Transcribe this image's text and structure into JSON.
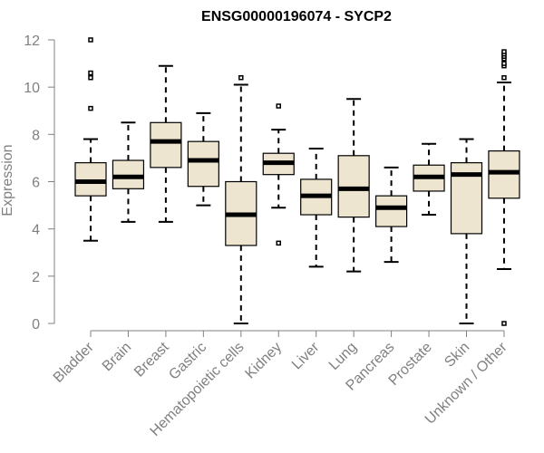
{
  "chart_data": {
    "type": "boxplot",
    "title": "ENSG00000196074 - SYCP2",
    "ylabel": "Expression",
    "xlabel": "",
    "ylim": [
      0,
      12
    ],
    "yticks": [
      0,
      2,
      4,
      6,
      8,
      10,
      12
    ],
    "categories": [
      "Bladder",
      "Brain",
      "Breast",
      "Gastric",
      "Hematopoietic cells",
      "Kidney",
      "Liver",
      "Lung",
      "Pancreas",
      "Prostate",
      "Skin",
      "Unknown / Other"
    ],
    "boxes": [
      {
        "category": "Bladder",
        "min": 3.5,
        "q1": 5.4,
        "median": 6.0,
        "q3": 6.8,
        "max": 7.8,
        "outliers": [
          9.1,
          10.4,
          10.6,
          12.0
        ]
      },
      {
        "category": "Brain",
        "min": 4.3,
        "q1": 5.7,
        "median": 6.2,
        "q3": 6.9,
        "max": 8.5,
        "outliers": []
      },
      {
        "category": "Breast",
        "min": 4.3,
        "q1": 6.6,
        "median": 7.7,
        "q3": 8.5,
        "max": 10.9,
        "outliers": []
      },
      {
        "category": "Gastric",
        "min": 5.0,
        "q1": 5.8,
        "median": 6.9,
        "q3": 7.7,
        "max": 8.9,
        "outliers": []
      },
      {
        "category": "Hematopoietic cells",
        "min": 0.0,
        "q1": 3.3,
        "median": 4.6,
        "q3": 6.0,
        "max": 10.1,
        "outliers": [
          10.4
        ]
      },
      {
        "category": "Kidney",
        "min": 4.9,
        "q1": 6.3,
        "median": 6.8,
        "q3": 7.2,
        "max": 8.2,
        "outliers": [
          3.4,
          9.2
        ]
      },
      {
        "category": "Liver",
        "min": 2.4,
        "q1": 4.6,
        "median": 5.4,
        "q3": 6.1,
        "max": 7.4,
        "outliers": []
      },
      {
        "category": "Lung",
        "min": 2.2,
        "q1": 4.5,
        "median": 5.7,
        "q3": 7.1,
        "max": 9.5,
        "outliers": []
      },
      {
        "category": "Pancreas",
        "min": 2.6,
        "q1": 4.1,
        "median": 4.9,
        "q3": 5.4,
        "max": 6.6,
        "outliers": []
      },
      {
        "category": "Prostate",
        "min": 4.6,
        "q1": 5.6,
        "median": 6.2,
        "q3": 6.7,
        "max": 7.6,
        "outliers": []
      },
      {
        "category": "Skin",
        "min": 0.0,
        "q1": 3.8,
        "median": 6.3,
        "q3": 6.8,
        "max": 7.8,
        "outliers": []
      },
      {
        "category": "Unknown / Other",
        "min": 2.3,
        "q1": 5.3,
        "median": 6.4,
        "q3": 7.3,
        "max": 10.2,
        "outliers": [
          0.0,
          10.4,
          10.9,
          11.0,
          11.2,
          11.3,
          11.4,
          11.5
        ]
      }
    ]
  }
}
